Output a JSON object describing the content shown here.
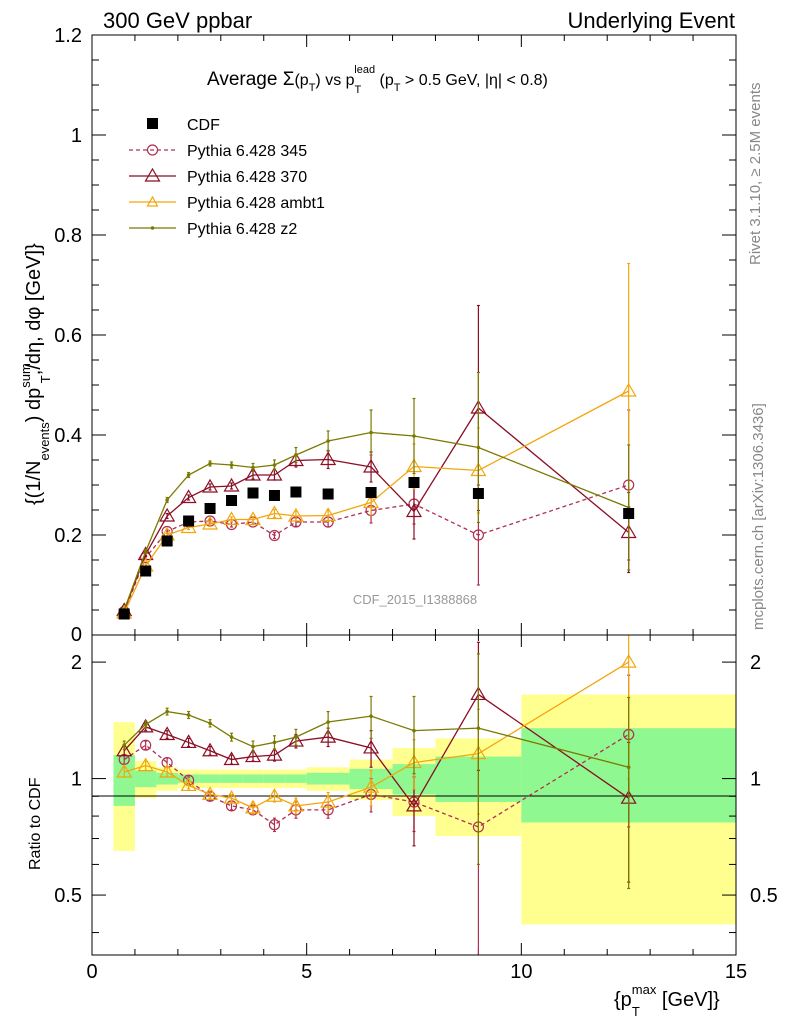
{
  "header": {
    "left": "300 GeV ppbar",
    "right": "Underlying Event"
  },
  "side": {
    "rivet": "Rivet 3.1.10, ≥ 2.5M events",
    "mcplots": "mcplots.cern.ch [arXiv:1306.3436]"
  },
  "chart_data": [
    {
      "type": "line",
      "title_parts": [
        "Average ",
        "Σ",
        "(p",
        "T",
        ") vs p",
        "T",
        "lead",
        " (p",
        "T",
        " > 0.5 GeV, |η| < 0.8)"
      ],
      "ylabel_parts": [
        "{(1/N",
        "events",
        ") dp",
        "sum",
        "T",
        ",/dη, dφ [GeV]}"
      ],
      "watermark": "CDF_2015_I1388868",
      "xlim": [
        0,
        15
      ],
      "ylim": [
        0,
        1.2
      ],
      "xticks": [
        0,
        5,
        10,
        15
      ],
      "yticks": [
        0.2,
        0.4,
        0.6,
        0.8,
        1,
        1.2
      ],
      "ytick_labels": [
        "0.2",
        "0.4",
        "0.6",
        "0.8",
        "1",
        "1.2"
      ],
      "y0_label": "0",
      "legend_position": "top-left",
      "data_series": {
        "name": "CDF",
        "color": "#000000",
        "x": [
          0.75,
          1.25,
          1.75,
          2.25,
          2.75,
          3.25,
          3.75,
          4.25,
          4.75,
          5.5,
          6.5,
          7.5,
          9.0,
          12.5
        ],
        "y": [
          0.042,
          0.128,
          0.188,
          0.228,
          0.253,
          0.269,
          0.284,
          0.279,
          0.286,
          0.282,
          0.285,
          0.305,
          0.283,
          0.243
        ]
      },
      "series": [
        {
          "name": "Pythia 6.428 345",
          "color": "#b03050",
          "marker": "circle",
          "dashed": true,
          "x": [
            0.75,
            1.25,
            1.75,
            2.25,
            2.75,
            3.25,
            3.75,
            4.25,
            4.75,
            5.5,
            6.5,
            7.5,
            9.0,
            12.5
          ],
          "y": [
            0.047,
            0.155,
            0.207,
            0.226,
            0.228,
            0.221,
            0.226,
            0.199,
            0.226,
            0.226,
            0.249,
            0.262,
            0.2,
            0.3
          ],
          "err": [
            0.003,
            0.004,
            0.004,
            0.004,
            0.004,
            0.005,
            0.005,
            0.006,
            0.008,
            0.01,
            0.025,
            0.04,
            0.1,
            0.15
          ]
        },
        {
          "name": "Pythia 6.428 370",
          "color": "#8b0e24",
          "marker": "triangle",
          "dashed": false,
          "x": [
            0.75,
            1.25,
            1.75,
            2.25,
            2.75,
            3.25,
            3.75,
            4.25,
            4.75,
            5.5,
            6.5,
            7.5,
            9.0,
            12.5
          ],
          "y": [
            0.049,
            0.161,
            0.238,
            0.275,
            0.296,
            0.298,
            0.32,
            0.32,
            0.349,
            0.351,
            0.336,
            0.247,
            0.454,
            0.205
          ],
          "err": [
            0.003,
            0.004,
            0.005,
            0.005,
            0.006,
            0.006,
            0.008,
            0.01,
            0.013,
            0.018,
            0.03,
            0.055,
            0.205,
            0.08
          ]
        },
        {
          "name": "Pythia 6.428 ambt1",
          "color": "#f2a60d",
          "marker": "triangle",
          "dashed": false,
          "x": [
            0.75,
            1.25,
            1.75,
            2.25,
            2.75,
            3.25,
            3.75,
            4.25,
            4.75,
            5.5,
            6.5,
            7.5,
            9.0,
            12.5
          ],
          "y": [
            0.044,
            0.138,
            0.2,
            0.215,
            0.222,
            0.231,
            0.231,
            0.243,
            0.238,
            0.239,
            0.265,
            0.337,
            0.329,
            0.488
          ],
          "err": [
            0.003,
            0.004,
            0.004,
            0.004,
            0.005,
            0.005,
            0.006,
            0.008,
            0.01,
            0.012,
            0.025,
            0.045,
            0.085,
            0.255
          ]
        },
        {
          "name": "Pythia 6.428 z2",
          "color": "#7a7a00",
          "marker": "dot",
          "dashed": false,
          "x": [
            0.75,
            1.25,
            1.75,
            2.25,
            2.75,
            3.25,
            3.75,
            4.25,
            4.75,
            5.5,
            6.5,
            7.5,
            9.0,
            12.5
          ],
          "y": [
            0.05,
            0.167,
            0.27,
            0.32,
            0.343,
            0.34,
            0.335,
            0.34,
            0.36,
            0.388,
            0.405,
            0.398,
            0.375,
            0.255
          ],
          "err": [
            0.003,
            0.004,
            0.005,
            0.005,
            0.005,
            0.006,
            0.008,
            0.01,
            0.015,
            0.02,
            0.045,
            0.075,
            0.15,
            0.125
          ]
        }
      ]
    },
    {
      "type": "line",
      "ylabel": "Ratio to CDF",
      "xlabel_parts": [
        "{p",
        "T",
        "max",
        " [GeV]}"
      ],
      "xlim": [
        0,
        15
      ],
      "ylim": [
        0.35,
        2.35
      ],
      "xticks": [
        0,
        5,
        10,
        15
      ],
      "xtick_labels": [
        "0",
        "5",
        "10",
        "15"
      ],
      "yticks": [
        0.5,
        1,
        2
      ],
      "ytick_labels": [
        "0.5",
        "1",
        "2"
      ],
      "bins": [
        [
          0.5,
          1.0
        ],
        [
          1.0,
          1.5
        ],
        [
          1.5,
          2.0
        ],
        [
          2.0,
          2.5
        ],
        [
          2.5,
          3.0
        ],
        [
          3.0,
          3.5
        ],
        [
          3.5,
          4.0
        ],
        [
          4.0,
          4.5
        ],
        [
          4.5,
          5.0
        ],
        [
          5.0,
          6.0
        ],
        [
          6.0,
          7.0
        ],
        [
          7.0,
          8.0
        ],
        [
          8.0,
          10.0
        ],
        [
          10.0,
          15.0
        ]
      ],
      "band_inner": {
        "color": "#90f890",
        "lo": [
          0.85,
          0.95,
          0.965,
          0.975,
          0.975,
          0.975,
          0.975,
          0.975,
          0.975,
          0.965,
          0.94,
          0.91,
          0.87,
          0.77
        ],
        "hi": [
          1.15,
          1.05,
          1.035,
          1.025,
          1.025,
          1.025,
          1.025,
          1.025,
          1.025,
          1.035,
          1.06,
          1.09,
          1.14,
          1.35
        ]
      },
      "band_outer": {
        "color": "#ffff90",
        "lo": [
          0.65,
          0.89,
          0.93,
          0.945,
          0.945,
          0.945,
          0.945,
          0.945,
          0.945,
          0.93,
          0.88,
          0.8,
          0.71,
          0.42
        ],
        "hi": [
          1.4,
          1.11,
          1.07,
          1.055,
          1.055,
          1.055,
          1.055,
          1.055,
          1.055,
          1.07,
          1.12,
          1.2,
          1.27,
          1.65
        ]
      },
      "series": [
        {
          "name": "Pythia 6.428 345",
          "x": [
            0.75,
            1.25,
            1.75,
            2.25,
            2.75,
            3.25,
            3.75,
            4.25,
            4.75,
            5.5,
            6.5,
            7.5,
            9.0,
            12.5
          ],
          "y": [
            1.12,
            1.22,
            1.1,
            0.99,
            0.9,
            0.85,
            0.83,
            0.76,
            0.83,
            0.83,
            0.91,
            0.87,
            0.75,
            1.3
          ],
          "err": [
            0.03,
            0.03,
            0.03,
            0.02,
            0.02,
            0.02,
            0.02,
            0.03,
            0.04,
            0.04,
            0.09,
            0.14,
            0.45,
            0.55
          ]
        },
        {
          "name": "Pythia 6.428 370",
          "x": [
            0.75,
            1.25,
            1.75,
            2.25,
            2.75,
            3.25,
            3.75,
            4.25,
            4.75,
            5.5,
            6.5,
            7.5,
            9.0,
            12.5
          ],
          "y": [
            1.18,
            1.36,
            1.3,
            1.24,
            1.18,
            1.12,
            1.14,
            1.15,
            1.25,
            1.28,
            1.2,
            0.85,
            1.65,
            0.89
          ],
          "err": [
            0.03,
            0.03,
            0.03,
            0.03,
            0.03,
            0.03,
            0.03,
            0.04,
            0.05,
            0.07,
            0.13,
            0.18,
            0.6,
            0.35
          ]
        },
        {
          "name": "Pythia 6.428 ambt1",
          "x": [
            0.75,
            1.25,
            1.75,
            2.25,
            2.75,
            3.25,
            3.75,
            4.25,
            4.75,
            5.5,
            6.5,
            7.5,
            9.0,
            12.5
          ],
          "y": [
            1.04,
            1.08,
            1.04,
            0.96,
            0.91,
            0.89,
            0.84,
            0.9,
            0.85,
            0.87,
            0.95,
            1.1,
            1.16,
            2.0
          ],
          "err": [
            0.03,
            0.03,
            0.03,
            0.02,
            0.02,
            0.02,
            0.03,
            0.03,
            0.04,
            0.05,
            0.1,
            0.16,
            0.35,
            1.0
          ]
        },
        {
          "name": "Pythia 6.428 z2",
          "x": [
            0.75,
            1.25,
            1.75,
            2.25,
            2.75,
            3.25,
            3.75,
            4.25,
            4.75,
            5.5,
            6.5,
            7.5,
            9.0,
            12.5
          ],
          "y": [
            1.22,
            1.38,
            1.49,
            1.46,
            1.39,
            1.28,
            1.21,
            1.24,
            1.28,
            1.4,
            1.45,
            1.33,
            1.35,
            1.07
          ],
          "err": [
            0.03,
            0.03,
            0.03,
            0.03,
            0.03,
            0.03,
            0.04,
            0.05,
            0.06,
            0.09,
            0.18,
            0.3,
            0.75,
            0.55
          ]
        }
      ]
    }
  ]
}
